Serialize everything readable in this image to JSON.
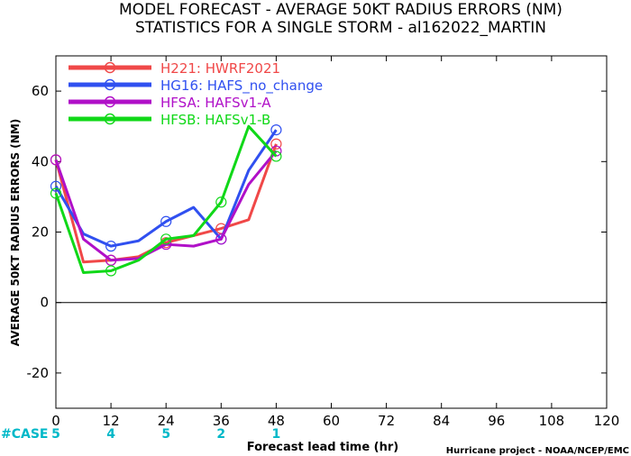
{
  "title_lines": [
    "MODEL FORECAST - AVERAGE 50KT RADIUS ERRORS (NM)",
    "STATISTICS FOR A SINGLE STORM - al162022_MARTIN"
  ],
  "footer": "Hurricane project - NOAA/NCEP/EMC",
  "case_label": "#CASE",
  "chart_data": {
    "type": "line",
    "title": "MODEL FORECAST - AVERAGE 50KT RADIUS ERRORS (NM)",
    "subtitle": "STATISTICS FOR A SINGLE STORM - al162022_MARTIN",
    "xlabel": "Forecast lead time (hr)",
    "ylabel": "AVERAGE 50KT RADIUS ERRORS (NM)",
    "xlim": [
      0,
      120
    ],
    "ylim": [
      -30,
      70
    ],
    "xticks": [
      0,
      12,
      24,
      36,
      48,
      60,
      72,
      84,
      96,
      108,
      120
    ],
    "yticks": [
      -20,
      0,
      20,
      40,
      60
    ],
    "grid": false,
    "zero_line": true,
    "legend_position": "top-left",
    "cases": [
      {
        "x": 0,
        "n": "5"
      },
      {
        "x": 12,
        "n": "4"
      },
      {
        "x": 24,
        "n": "5"
      },
      {
        "x": 36,
        "n": "2"
      },
      {
        "x": 48,
        "n": "1"
      }
    ],
    "series": [
      {
        "name": "H221: HWRF2021",
        "color": "#f04848",
        "x": [
          0,
          6,
          12,
          18,
          24,
          30,
          36,
          42,
          48
        ],
        "y": [
          40.5,
          11.5,
          12,
          13,
          17,
          19,
          21,
          23.5,
          45
        ]
      },
      {
        "name": "HG16: HAFS_no_change",
        "color": "#3050f0",
        "x": [
          0,
          6,
          12,
          18,
          24,
          30,
          36,
          42,
          48
        ],
        "y": [
          33,
          19.5,
          16,
          17.5,
          23,
          27,
          18,
          37.5,
          49
        ]
      },
      {
        "name": "HFSA: HAFSv1-A",
        "color": "#b010c8",
        "x": [
          0,
          6,
          12,
          18,
          24,
          30,
          36,
          42,
          48
        ],
        "y": [
          40.5,
          18,
          12,
          12.5,
          16.5,
          16,
          18,
          33.5,
          43
        ]
      },
      {
        "name": "HFSB: HAFSv1-B",
        "color": "#10d818",
        "x": [
          0,
          6,
          12,
          18,
          24,
          30,
          36,
          42,
          48
        ],
        "y": [
          31,
          8.5,
          9,
          12,
          18,
          19,
          28.5,
          50,
          41.5
        ]
      }
    ]
  }
}
